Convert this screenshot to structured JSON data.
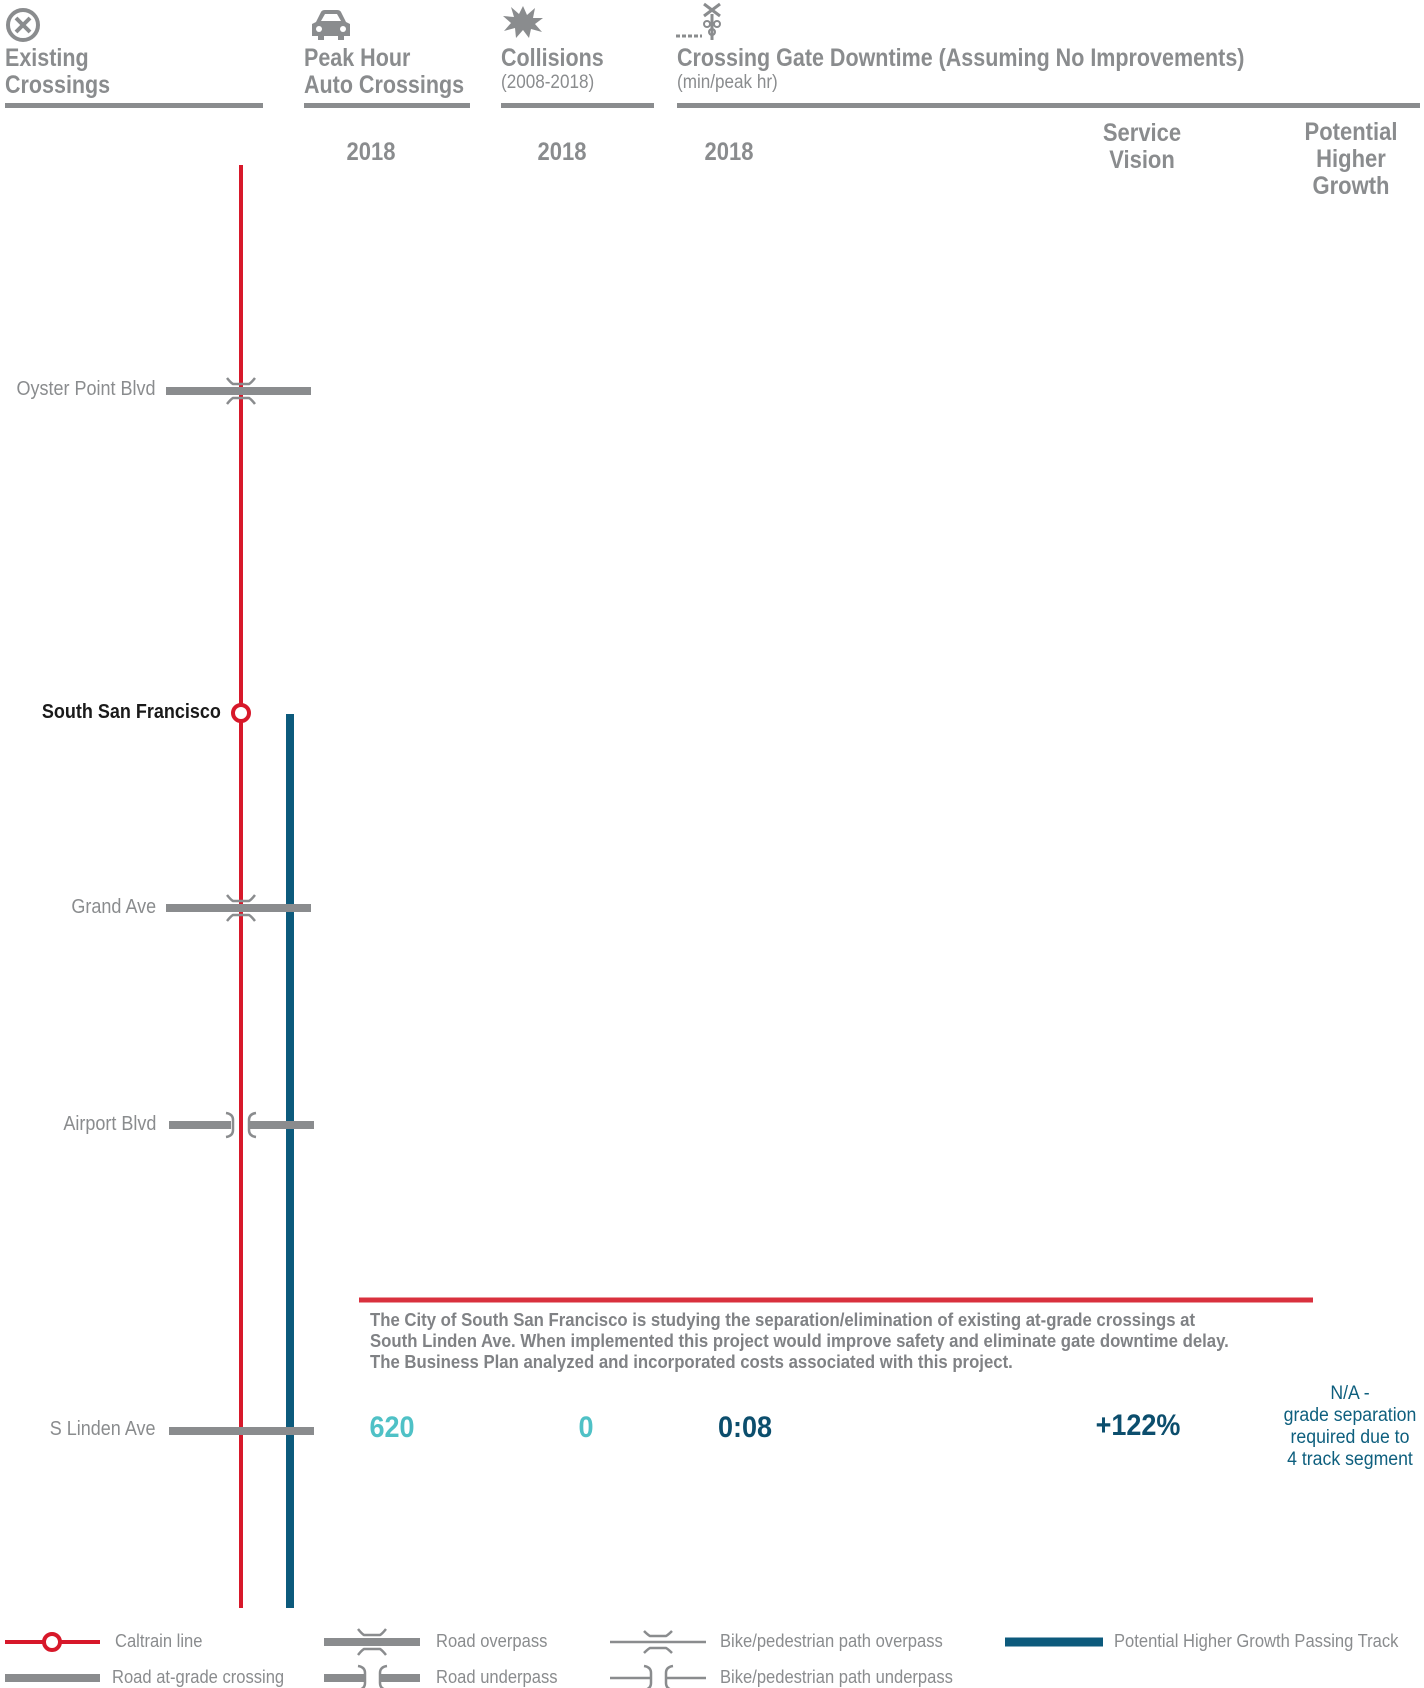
{
  "headers": {
    "existing": [
      "Existing",
      "Crossings"
    ],
    "peak": [
      "Peak Hour",
      "Auto Crossings"
    ],
    "collisions": "Collisions",
    "collisions_sub": "(2008-2018)",
    "downtime": "Crossing Gate Downtime (Assuming No Improvements)",
    "downtime_sub": "(min/peak hr)"
  },
  "columns": {
    "peak_year": "2018",
    "collisions_year": "2018",
    "downtime_year": "2018",
    "service_vision": [
      "Service",
      "Vision"
    ],
    "higher_growth": [
      "Potential",
      "Higher",
      "Growth"
    ]
  },
  "crossings": [
    {
      "name": "Oyster Point Blvd",
      "type": "road-overpass"
    },
    {
      "name": "Grand Ave",
      "type": "road-overpass"
    },
    {
      "name": "Airport Blvd",
      "type": "road-underpass"
    },
    {
      "name": "S Linden Ave",
      "type": "road-at-grade"
    }
  ],
  "station": "South San Francisco",
  "note": [
    "The City of South San Francisco is studying the separation/elimination of existing at-grade crossings at",
    "South Linden Ave. When implemented this project would improve safety and eliminate gate downtime delay.",
    "The Business Plan analyzed and incorporated costs associated with this project."
  ],
  "s_linden_values": {
    "peak_auto": "620",
    "collisions": "0",
    "downtime_2018": "0:08",
    "service_vision": "+122%",
    "higher_growth": [
      "N/A -",
      "grade separation",
      "required due to",
      "4 track segment"
    ]
  },
  "legend": {
    "caltrain": "Caltrain line",
    "at_grade": "Road at-grade crossing",
    "road_overpass": "Road overpass",
    "road_underpass": "Road underpass",
    "bike_overpass": "Bike/pedestrian path overpass",
    "bike_underpass": "Bike/pedestrian path underpass",
    "passing_track": "Potential Higher Growth Passing Track"
  },
  "colors": {
    "caltrain": "#d7182a",
    "passing_track": "#0c5a7c",
    "gray": "#8a8c8e",
    "teal": "#4fc1c6",
    "navy": "#0c4e6d"
  }
}
